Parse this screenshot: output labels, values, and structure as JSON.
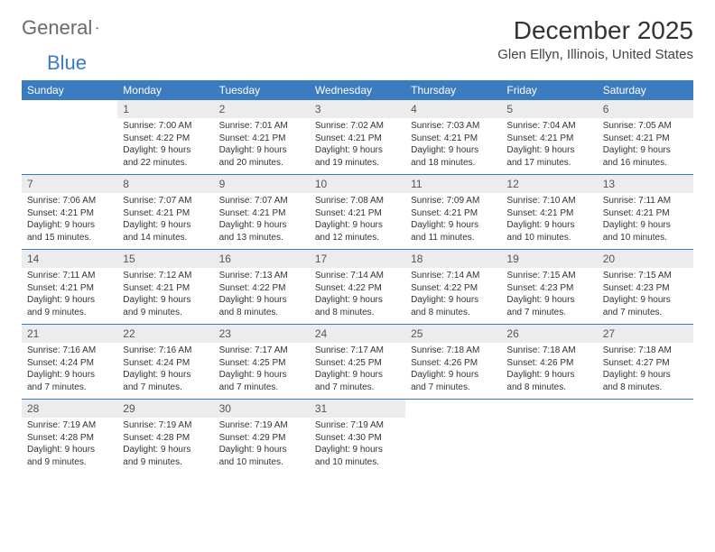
{
  "brand": {
    "word1": "General",
    "word2": "Blue"
  },
  "title": "December 2025",
  "location": "Glen Ellyn, Illinois, United States",
  "colors": {
    "brand_blue": "#3b7bbf",
    "header_bg": "#3b7bbf",
    "header_text": "#ffffff",
    "daynum_bg": "#ececec",
    "daynum_text": "#555555",
    "body_text": "#333333",
    "page_bg": "#ffffff"
  },
  "dayHeaders": [
    "Sunday",
    "Monday",
    "Tuesday",
    "Wednesday",
    "Thursday",
    "Friday",
    "Saturday"
  ],
  "weeks": [
    [
      null,
      {
        "n": "1",
        "sr": "Sunrise: 7:00 AM",
        "ss": "Sunset: 4:22 PM",
        "d1": "Daylight: 9 hours",
        "d2": "and 22 minutes."
      },
      {
        "n": "2",
        "sr": "Sunrise: 7:01 AM",
        "ss": "Sunset: 4:21 PM",
        "d1": "Daylight: 9 hours",
        "d2": "and 20 minutes."
      },
      {
        "n": "3",
        "sr": "Sunrise: 7:02 AM",
        "ss": "Sunset: 4:21 PM",
        "d1": "Daylight: 9 hours",
        "d2": "and 19 minutes."
      },
      {
        "n": "4",
        "sr": "Sunrise: 7:03 AM",
        "ss": "Sunset: 4:21 PM",
        "d1": "Daylight: 9 hours",
        "d2": "and 18 minutes."
      },
      {
        "n": "5",
        "sr": "Sunrise: 7:04 AM",
        "ss": "Sunset: 4:21 PM",
        "d1": "Daylight: 9 hours",
        "d2": "and 17 minutes."
      },
      {
        "n": "6",
        "sr": "Sunrise: 7:05 AM",
        "ss": "Sunset: 4:21 PM",
        "d1": "Daylight: 9 hours",
        "d2": "and 16 minutes."
      }
    ],
    [
      {
        "n": "7",
        "sr": "Sunrise: 7:06 AM",
        "ss": "Sunset: 4:21 PM",
        "d1": "Daylight: 9 hours",
        "d2": "and 15 minutes."
      },
      {
        "n": "8",
        "sr": "Sunrise: 7:07 AM",
        "ss": "Sunset: 4:21 PM",
        "d1": "Daylight: 9 hours",
        "d2": "and 14 minutes."
      },
      {
        "n": "9",
        "sr": "Sunrise: 7:07 AM",
        "ss": "Sunset: 4:21 PM",
        "d1": "Daylight: 9 hours",
        "d2": "and 13 minutes."
      },
      {
        "n": "10",
        "sr": "Sunrise: 7:08 AM",
        "ss": "Sunset: 4:21 PM",
        "d1": "Daylight: 9 hours",
        "d2": "and 12 minutes."
      },
      {
        "n": "11",
        "sr": "Sunrise: 7:09 AM",
        "ss": "Sunset: 4:21 PM",
        "d1": "Daylight: 9 hours",
        "d2": "and 11 minutes."
      },
      {
        "n": "12",
        "sr": "Sunrise: 7:10 AM",
        "ss": "Sunset: 4:21 PM",
        "d1": "Daylight: 9 hours",
        "d2": "and 10 minutes."
      },
      {
        "n": "13",
        "sr": "Sunrise: 7:11 AM",
        "ss": "Sunset: 4:21 PM",
        "d1": "Daylight: 9 hours",
        "d2": "and 10 minutes."
      }
    ],
    [
      {
        "n": "14",
        "sr": "Sunrise: 7:11 AM",
        "ss": "Sunset: 4:21 PM",
        "d1": "Daylight: 9 hours",
        "d2": "and 9 minutes."
      },
      {
        "n": "15",
        "sr": "Sunrise: 7:12 AM",
        "ss": "Sunset: 4:21 PM",
        "d1": "Daylight: 9 hours",
        "d2": "and 9 minutes."
      },
      {
        "n": "16",
        "sr": "Sunrise: 7:13 AM",
        "ss": "Sunset: 4:22 PM",
        "d1": "Daylight: 9 hours",
        "d2": "and 8 minutes."
      },
      {
        "n": "17",
        "sr": "Sunrise: 7:14 AM",
        "ss": "Sunset: 4:22 PM",
        "d1": "Daylight: 9 hours",
        "d2": "and 8 minutes."
      },
      {
        "n": "18",
        "sr": "Sunrise: 7:14 AM",
        "ss": "Sunset: 4:22 PM",
        "d1": "Daylight: 9 hours",
        "d2": "and 8 minutes."
      },
      {
        "n": "19",
        "sr": "Sunrise: 7:15 AM",
        "ss": "Sunset: 4:23 PM",
        "d1": "Daylight: 9 hours",
        "d2": "and 7 minutes."
      },
      {
        "n": "20",
        "sr": "Sunrise: 7:15 AM",
        "ss": "Sunset: 4:23 PM",
        "d1": "Daylight: 9 hours",
        "d2": "and 7 minutes."
      }
    ],
    [
      {
        "n": "21",
        "sr": "Sunrise: 7:16 AM",
        "ss": "Sunset: 4:24 PM",
        "d1": "Daylight: 9 hours",
        "d2": "and 7 minutes."
      },
      {
        "n": "22",
        "sr": "Sunrise: 7:16 AM",
        "ss": "Sunset: 4:24 PM",
        "d1": "Daylight: 9 hours",
        "d2": "and 7 minutes."
      },
      {
        "n": "23",
        "sr": "Sunrise: 7:17 AM",
        "ss": "Sunset: 4:25 PM",
        "d1": "Daylight: 9 hours",
        "d2": "and 7 minutes."
      },
      {
        "n": "24",
        "sr": "Sunrise: 7:17 AM",
        "ss": "Sunset: 4:25 PM",
        "d1": "Daylight: 9 hours",
        "d2": "and 7 minutes."
      },
      {
        "n": "25",
        "sr": "Sunrise: 7:18 AM",
        "ss": "Sunset: 4:26 PM",
        "d1": "Daylight: 9 hours",
        "d2": "and 7 minutes."
      },
      {
        "n": "26",
        "sr": "Sunrise: 7:18 AM",
        "ss": "Sunset: 4:26 PM",
        "d1": "Daylight: 9 hours",
        "d2": "and 8 minutes."
      },
      {
        "n": "27",
        "sr": "Sunrise: 7:18 AM",
        "ss": "Sunset: 4:27 PM",
        "d1": "Daylight: 9 hours",
        "d2": "and 8 minutes."
      }
    ],
    [
      {
        "n": "28",
        "sr": "Sunrise: 7:19 AM",
        "ss": "Sunset: 4:28 PM",
        "d1": "Daylight: 9 hours",
        "d2": "and 9 minutes."
      },
      {
        "n": "29",
        "sr": "Sunrise: 7:19 AM",
        "ss": "Sunset: 4:28 PM",
        "d1": "Daylight: 9 hours",
        "d2": "and 9 minutes."
      },
      {
        "n": "30",
        "sr": "Sunrise: 7:19 AM",
        "ss": "Sunset: 4:29 PM",
        "d1": "Daylight: 9 hours",
        "d2": "and 10 minutes."
      },
      {
        "n": "31",
        "sr": "Sunrise: 7:19 AM",
        "ss": "Sunset: 4:30 PM",
        "d1": "Daylight: 9 hours",
        "d2": "and 10 minutes."
      },
      null,
      null,
      null
    ]
  ]
}
